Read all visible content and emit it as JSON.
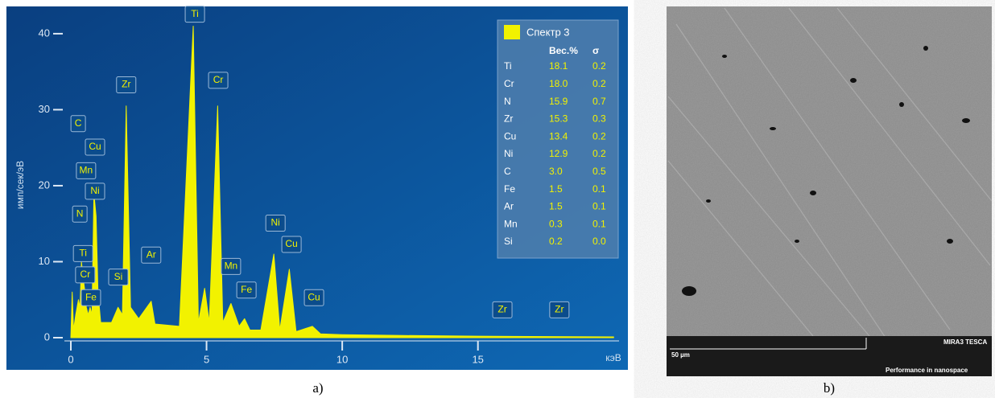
{
  "chart_data": {
    "type": "area",
    "y_label": "имп/сек/эВ",
    "x_label": "кэВ",
    "color": "#f2f200",
    "x": [
      0,
      0.05,
      0.1,
      0.18,
      0.28,
      0.34,
      0.39,
      0.45,
      0.52,
      0.57,
      0.64,
      0.71,
      0.78,
      0.85,
      0.93,
      1.0,
      1.1,
      1.5,
      1.74,
      1.9,
      2.04,
      2.2,
      2.5,
      2.96,
      3.1,
      4.0,
      4.51,
      4.7,
      4.93,
      5.1,
      5.41,
      5.6,
      5.9,
      6.2,
      6.4,
      6.6,
      7.0,
      7.48,
      7.7,
      8.05,
      8.3,
      8.9,
      9.2,
      10,
      12,
      15,
      20
    ],
    "values": [
      0,
      6,
      1,
      3,
      5,
      4,
      10,
      8,
      6,
      4,
      3,
      4,
      3,
      19,
      16,
      6,
      2,
      2,
      4,
      3,
      30.5,
      4,
      2.5,
      4.8,
      1.8,
      1.5,
      41,
      2,
      6.5,
      2,
      30.5,
      2,
      4.5,
      1.5,
      2.5,
      1,
      1,
      11,
      1,
      9,
      0.8,
      1.5,
      0.5,
      0.4,
      0.3,
      0.2,
      0.1
    ],
    "xlim": [
      0,
      20.2
    ],
    "ylim": [
      0,
      42
    ],
    "xticks": [
      0,
      5,
      10,
      15
    ],
    "yticks": [
      0,
      10,
      20,
      30,
      40
    ],
    "peak_labels": [
      {
        "text": "C",
        "x": 0.27,
        "y": 26.9
      },
      {
        "text": "Cu",
        "x": 0.89,
        "y": 23.8
      },
      {
        "text": "Mn",
        "x": 0.56,
        "y": 20.7
      },
      {
        "text": "Ni",
        "x": 0.89,
        "y": 18
      },
      {
        "text": "N",
        "x": 0.33,
        "y": 15
      },
      {
        "text": "Ti",
        "x": 0.45,
        "y": 9.8
      },
      {
        "text": "Cr",
        "x": 0.53,
        "y": 7
      },
      {
        "text": "Fe",
        "x": 0.74,
        "y": 4
      },
      {
        "text": "Si",
        "x": 1.75,
        "y": 6.7
      },
      {
        "text": "Zr",
        "x": 2.04,
        "y": 32
      },
      {
        "text": "Ar",
        "x": 2.96,
        "y": 9.6
      },
      {
        "text": "Ti",
        "x": 4.57,
        "y": 41.3
      },
      {
        "text": "Cr",
        "x": 5.43,
        "y": 32.6
      },
      {
        "text": "Mn",
        "x": 5.9,
        "y": 8.1
      },
      {
        "text": "Fe",
        "x": 6.47,
        "y": 5
      },
      {
        "text": "Ni",
        "x": 7.54,
        "y": 13.8
      },
      {
        "text": "Cu",
        "x": 8.13,
        "y": 11
      },
      {
        "text": "Cu",
        "x": 8.96,
        "y": 4
      },
      {
        "text": "Zr",
        "x": 15.9,
        "y": 2.4
      },
      {
        "text": "Zr",
        "x": 18.0,
        "y": 2.4
      }
    ]
  },
  "quant_table": {
    "title": "Спектр 3",
    "columns": [
      "Вес.%",
      "σ"
    ],
    "rows": [
      [
        "Ti",
        "18.1",
        "0.2"
      ],
      [
        "Cr",
        "18.0",
        "0.2"
      ],
      [
        "N",
        "15.9",
        "0.7"
      ],
      [
        "Zr",
        "15.3",
        "0.3"
      ],
      [
        "Cu",
        "13.4",
        "0.2"
      ],
      [
        "Ni",
        "12.9",
        "0.2"
      ],
      [
        "C",
        "3.0",
        "0.5"
      ],
      [
        "Fe",
        "1.5",
        "0.1"
      ],
      [
        "Ar",
        "1.5",
        "0.1"
      ],
      [
        "Mn",
        "0.3",
        "0.1"
      ],
      [
        "Si",
        "0.2",
        "0.0"
      ]
    ]
  },
  "sem_image": {
    "scale_bar": "50 µm",
    "brand": "MIRA3 TESCA",
    "slogan": "Performance in nanospace"
  },
  "captions": [
    "a)",
    "b)"
  ]
}
